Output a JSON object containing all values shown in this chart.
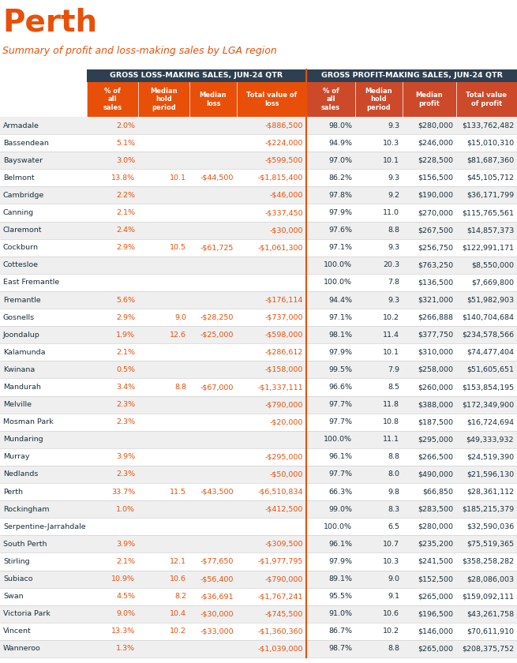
{
  "title": "Perth",
  "subtitle": "Summary of profit and loss-making sales by LGA region",
  "header1": "GROSS LOSS-MAKING SALES, JUN-24 QTR",
  "header2": "GROSS PROFIT-MAKING SALES, JUN-24 QTR",
  "col_headers": [
    "% of\nall\nsales",
    "Median\nhold\nperiod",
    "Median\nloss",
    "Total value of\nloss",
    "% of\nall\nsales",
    "Median\nhold\nperiod",
    "Median\nprofit",
    "Total value\nof profit"
  ],
  "rows": [
    [
      "Armadale",
      "2.0%",
      "",
      "",
      "-$886,500",
      "98.0%",
      "9.3",
      "$280,000",
      "$133,762,482"
    ],
    [
      "Bassendean",
      "5.1%",
      "",
      "",
      "-$224,000",
      "94.9%",
      "10.3",
      "$246,000",
      "$15,010,310"
    ],
    [
      "Bayswater",
      "3.0%",
      "",
      "",
      "-$599,500",
      "97.0%",
      "10.1",
      "$228,500",
      "$81,687,360"
    ],
    [
      "Belmont",
      "13.8%",
      "10.1",
      "-$44,500",
      "-$1,815,400",
      "86.2%",
      "9.3",
      "$156,500",
      "$45,105,712"
    ],
    [
      "Cambridge",
      "2.2%",
      "",
      "",
      "-$46,000",
      "97.8%",
      "9.2",
      "$190,000",
      "$36,171,799"
    ],
    [
      "Canning",
      "2.1%",
      "",
      "",
      "-$337,450",
      "97.9%",
      "11.0",
      "$270,000",
      "$115,765,561"
    ],
    [
      "Claremont",
      "2.4%",
      "",
      "",
      "-$30,000",
      "97.6%",
      "8.8",
      "$267,500",
      "$14,857,373"
    ],
    [
      "Cockburn",
      "2.9%",
      "10.5",
      "-$61,725",
      "-$1,061,300",
      "97.1%",
      "9.3",
      "$256,750",
      "$122,991,171"
    ],
    [
      "Cottesloe",
      "",
      "",
      "",
      "",
      "100.0%",
      "20.3",
      "$763,250",
      "$8,550,000"
    ],
    [
      "East Fremantle",
      "",
      "",
      "",
      "",
      "100.0%",
      "7.8",
      "$136,500",
      "$7,669,800"
    ],
    [
      "Fremantle",
      "5.6%",
      "",
      "",
      "-$176,114",
      "94.4%",
      "9.3",
      "$321,000",
      "$51,982,903"
    ],
    [
      "Gosnells",
      "2.9%",
      "9.0",
      "-$28,250",
      "-$737,000",
      "97.1%",
      "10.2",
      "$266,888",
      "$140,704,684"
    ],
    [
      "Joondalup",
      "1.9%",
      "12.6",
      "-$25,000",
      "-$598,000",
      "98.1%",
      "11.4",
      "$377,750",
      "$234,578,566"
    ],
    [
      "Kalamunda",
      "2.1%",
      "",
      "",
      "-$286,612",
      "97.9%",
      "10.1",
      "$310,000",
      "$74,477,404"
    ],
    [
      "Kwinana",
      "0.5%",
      "",
      "",
      "-$158,000",
      "99.5%",
      "7.9",
      "$258,000",
      "$51,605,651"
    ],
    [
      "Mandurah",
      "3.4%",
      "8.8",
      "-$67,000",
      "-$1,337,111",
      "96.6%",
      "8.5",
      "$260,000",
      "$153,854,195"
    ],
    [
      "Melville",
      "2.3%",
      "",
      "",
      "-$790,000",
      "97.7%",
      "11.8",
      "$388,000",
      "$172,349,900"
    ],
    [
      "Mosman Park",
      "2.3%",
      "",
      "",
      "-$20,000",
      "97.7%",
      "10.8",
      "$187,500",
      "$16,724,694"
    ],
    [
      "Mundaring",
      "",
      "",
      "",
      "",
      "100.0%",
      "11.1",
      "$295,000",
      "$49,333,932"
    ],
    [
      "Murray",
      "3.9%",
      "",
      "",
      "-$295,000",
      "96.1%",
      "8.8",
      "$266,500",
      "$24,519,390"
    ],
    [
      "Nedlands",
      "2.3%",
      "",
      "",
      "-$50,000",
      "97.7%",
      "8.0",
      "$490,000",
      "$21,596,130"
    ],
    [
      "Perth",
      "33.7%",
      "11.5",
      "-$43,500",
      "-$6,510,834",
      "66.3%",
      "9.8",
      "$66,850",
      "$28,361,112"
    ],
    [
      "Rockingham",
      "1.0%",
      "",
      "",
      "-$412,500",
      "99.0%",
      "8.3",
      "$283,500",
      "$185,215,379"
    ],
    [
      "Serpentine-Jarrahdale",
      "",
      "",
      "",
      "",
      "100.0%",
      "6.5",
      "$280,000",
      "$32,590,036"
    ],
    [
      "South Perth",
      "3.9%",
      "",
      "",
      "-$309,500",
      "96.1%",
      "10.7",
      "$235,200",
      "$75,519,365"
    ],
    [
      "Stirling",
      "2.1%",
      "12.1",
      "-$77,650",
      "-$1,977,795",
      "97.9%",
      "10.3",
      "$241,500",
      "$358,258,282"
    ],
    [
      "Subiaco",
      "10.9%",
      "10.6",
      "-$56,400",
      "-$790,000",
      "89.1%",
      "9.0",
      "$152,500",
      "$28,086,003"
    ],
    [
      "Swan",
      "4.5%",
      "8.2",
      "-$36,691",
      "-$1,767,241",
      "95.5%",
      "9.1",
      "$265,000",
      "$159,092,111"
    ],
    [
      "Victoria Park",
      "9.0%",
      "10.4",
      "-$30,000",
      "-$745,500",
      "91.0%",
      "10.6",
      "$196,500",
      "$43,261,758"
    ],
    [
      "Vincent",
      "13.3%",
      "10.2",
      "-$33,000",
      "-$1,360,360",
      "86.7%",
      "10.2",
      "$146,000",
      "$70,611,910"
    ],
    [
      "Wanneroo",
      "1.3%",
      "",
      "",
      "-$1,039,000",
      "98.7%",
      "8.8",
      "$265,000",
      "$208,375,752"
    ]
  ],
  "title_color": "#e8500a",
  "subtitle_color": "#e8500a",
  "header_bg": "#2d3f50",
  "subheader_loss_bg": "#e8500a",
  "subheader_profit_bg": "#cc4a2a",
  "orange_text_color": "#e8500a",
  "dark_text_color": "#1a2e3b",
  "row_bg_odd": "#efefef",
  "row_bg_even": "#ffffff",
  "separator_color": "#e8500a",
  "title_fontsize": 28,
  "subtitle_fontsize": 9,
  "header_fontsize": 6.8,
  "subheader_fontsize": 6.0,
  "data_fontsize": 6.8
}
